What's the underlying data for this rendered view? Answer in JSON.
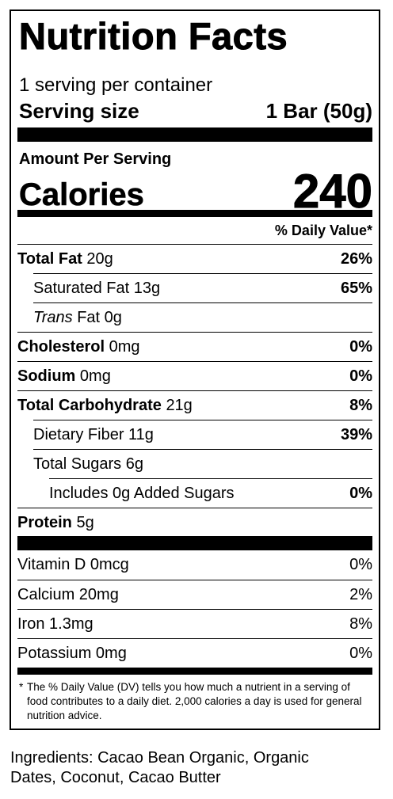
{
  "label": {
    "title": "Nutrition Facts",
    "servings_per_container": "1 serving per container",
    "serving_size_label": "Serving size",
    "serving_size_value": "1 Bar (50g)",
    "amount_per_serving": "Amount Per Serving",
    "calories_label": "Calories",
    "calories_value": "240",
    "dv_header": "% Daily Value*",
    "nutrients": [
      {
        "name": "Total Fat",
        "amount": "20g",
        "dv": "26%"
      },
      {
        "name": "Saturated Fat",
        "amount": "13g",
        "dv": "65%"
      },
      {
        "name": "Trans",
        "amount": "Fat 0g",
        "dv": ""
      },
      {
        "name": "Cholesterol",
        "amount": "0mg",
        "dv": "0%"
      },
      {
        "name": "Sodium",
        "amount": "0mg",
        "dv": "0%"
      },
      {
        "name": "Total Carbohydrate",
        "amount": "21g",
        "dv": "8%"
      },
      {
        "name": "Dietary Fiber",
        "amount": "11g",
        "dv": "39%"
      },
      {
        "name": "Total Sugars",
        "amount": "6g",
        "dv": ""
      },
      {
        "name": "Includes 0g Added Sugars",
        "amount": "",
        "dv": "0%"
      },
      {
        "name": "Protein",
        "amount": "5g",
        "dv": ""
      }
    ],
    "vitamins": [
      {
        "name": "Vitamin D 0mcg",
        "dv": "0%"
      },
      {
        "name": "Calcium 20mg",
        "dv": "2%"
      },
      {
        "name": "Iron 1.3mg",
        "dv": "8%"
      },
      {
        "name": "Potassium 0mg",
        "dv": "0%"
      }
    ],
    "footnote_star": "*",
    "footnote": "The % Daily Value (DV) tells you how much a nutrient in a serving of food contributes to a daily diet. 2,000 calories a day is used for general nutrition advice."
  },
  "ingredients": "Ingredients: Cacao Bean Organic, Organic Dates, Coconut, Cacao Butter"
}
